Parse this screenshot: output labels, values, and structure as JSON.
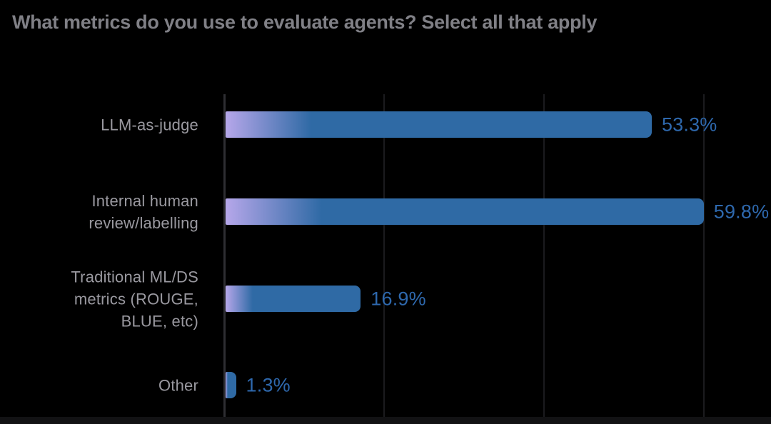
{
  "chart_data": {
    "type": "bar",
    "orientation": "horizontal",
    "title": "What metrics do you use to evaluate agents? Select all that apply",
    "categories": [
      "LLM-as-judge",
      "Internal human\nreview/labelling",
      "Traditional ML/DS\nmetrics (ROUGE,\nBLUE, etc)",
      "Other"
    ],
    "values": [
      53.3,
      59.8,
      16.9,
      1.3
    ],
    "value_labels": [
      "53.3%",
      "59.8%",
      "16.9%",
      "1.3%"
    ],
    "xlabel": "",
    "ylabel": "",
    "xlim": [
      0,
      67
    ],
    "grid_percents": [
      0,
      20,
      40,
      60
    ],
    "grid_on": true,
    "legend_position": "none"
  },
  "colors": {
    "background": "#000000",
    "title_text": "#808086",
    "category_text": "#9a99a0",
    "value_text": "#2e68ad",
    "bar_gradient_start": "#b6a7ea",
    "bar_gradient_end": "#2f6aa5",
    "axis_line": "#2e2e32",
    "gridline": "#1b1b1e",
    "bottom_band": "#121214"
  }
}
